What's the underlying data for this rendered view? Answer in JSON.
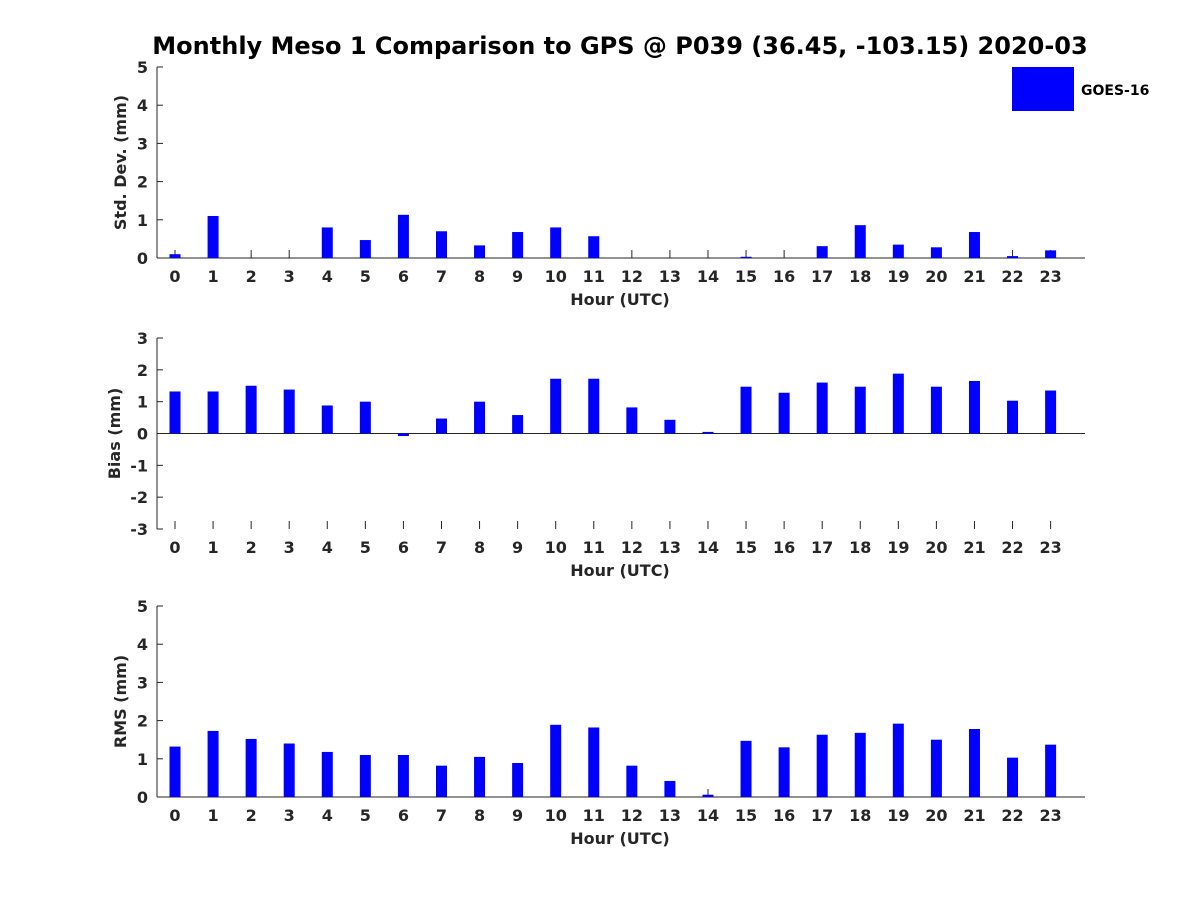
{
  "figure": {
    "title": "Monthly Meso 1 Comparison to GPS @ P039 (36.45, -103.15) 2020-03",
    "legend": {
      "label": "GOES-16",
      "color": "#0000ff",
      "placement": "top-right"
    }
  },
  "chart_data": [
    {
      "type": "bar",
      "name": "std",
      "ylabel": "Std. Dev. (mm)",
      "xlabel": "Hour (UTC)",
      "ylim": [
        0,
        5
      ],
      "yticks": [
        0,
        1,
        2,
        3,
        4,
        5
      ],
      "categories": [
        "0",
        "1",
        "2",
        "3",
        "4",
        "5",
        "6",
        "7",
        "8",
        "9",
        "10",
        "11",
        "12",
        "13",
        "14",
        "15",
        "16",
        "17",
        "18",
        "19",
        "20",
        "21",
        "22",
        "23"
      ],
      "series": [
        {
          "name": "GOES-16",
          "color": "#0000ff",
          "values": [
            0.1,
            1.1,
            0,
            0,
            0.8,
            0.47,
            1.13,
            0.7,
            0.33,
            0.68,
            0.8,
            0.57,
            0,
            0,
            0,
            0.02,
            0,
            0.31,
            0.86,
            0.35,
            0.28,
            0.68,
            0.05,
            0.2
          ]
        }
      ]
    },
    {
      "type": "bar",
      "name": "bias",
      "ylabel": "Bias (mm)",
      "xlabel": "Hour (UTC)",
      "ylim": [
        -3,
        3
      ],
      "yticks": [
        -3,
        -2,
        -1,
        0,
        1,
        2,
        3
      ],
      "categories": [
        "0",
        "1",
        "2",
        "3",
        "4",
        "5",
        "6",
        "7",
        "8",
        "9",
        "10",
        "11",
        "12",
        "13",
        "14",
        "15",
        "16",
        "17",
        "18",
        "19",
        "20",
        "21",
        "22",
        "23"
      ],
      "series": [
        {
          "name": "GOES-16",
          "color": "#0000ff",
          "values": [
            1.32,
            1.32,
            1.5,
            1.38,
            0.88,
            1.0,
            -0.08,
            0.47,
            1.0,
            0.58,
            1.72,
            1.72,
            0.82,
            0.43,
            0.05,
            1.47,
            1.28,
            1.6,
            1.47,
            1.88,
            1.47,
            1.65,
            1.03,
            1.35
          ]
        }
      ]
    },
    {
      "type": "bar",
      "name": "rms",
      "ylabel": "RMS (mm)",
      "xlabel": "Hour (UTC)",
      "ylim": [
        0,
        5
      ],
      "yticks": [
        0,
        1,
        2,
        3,
        4,
        5
      ],
      "categories": [
        "0",
        "1",
        "2",
        "3",
        "4",
        "5",
        "6",
        "7",
        "8",
        "9",
        "10",
        "11",
        "12",
        "13",
        "14",
        "15",
        "16",
        "17",
        "18",
        "19",
        "20",
        "21",
        "22",
        "23"
      ],
      "series": [
        {
          "name": "GOES-16",
          "color": "#0000ff",
          "values": [
            1.32,
            1.73,
            1.52,
            1.4,
            1.18,
            1.1,
            1.1,
            0.82,
            1.05,
            0.89,
            1.89,
            1.82,
            0.82,
            0.42,
            0.06,
            1.47,
            1.3,
            1.63,
            1.68,
            1.92,
            1.5,
            1.78,
            1.03,
            1.37
          ]
        }
      ]
    }
  ]
}
